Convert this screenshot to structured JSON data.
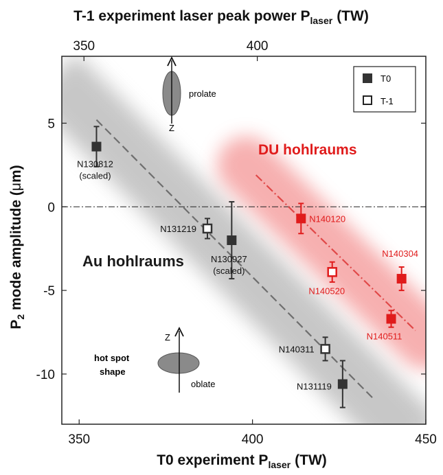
{
  "chart_data": {
    "type": "scatter",
    "xlabel_main": "T0 experiment P",
    "xlabel_sub": "laser",
    "xlabel_unit": "(TW)",
    "xlabel_top_main": "T-1 experiment laser peak power P",
    "xlabel_top_sub": "laser",
    "xlabel_top_unit": "(TW)",
    "ylabel_prefix": "P",
    "ylabel_sub": "2",
    "ylabel_rest": " mode amplitude (",
    "ylabel_mu": "μ",
    "ylabel_unit": "m)",
    "xlim": [
      345,
      450
    ],
    "ylim": [
      -13,
      9
    ],
    "x_ticks": [
      350,
      400,
      450
    ],
    "x_tick_labels": [
      "350",
      "400",
      "450"
    ],
    "x_top_ticks": [
      350,
      400
    ],
    "x_top_tick_labels": [
      "350",
      "400"
    ],
    "y_ticks": [
      5,
      0,
      -5,
      -10
    ],
    "y_tick_labels": [
      "5",
      "0",
      "-5",
      "-10"
    ],
    "legend": {
      "position": "top-right",
      "entries": [
        {
          "label": "T0",
          "marker": "filled-square"
        },
        {
          "label": "T-1",
          "marker": "open-square"
        }
      ]
    },
    "colors": {
      "au": "#4a4a4a",
      "du": "#e01b1b",
      "band_au": "#9a9a9a",
      "band_du": "#f07070"
    },
    "series": [
      {
        "group": "Au",
        "points": [
          {
            "x": 355,
            "y": 3.6,
            "err": 1.2,
            "marker": "filled",
            "label": "N130812",
            "label2": "(scaled)"
          },
          {
            "x": 387,
            "y": -1.3,
            "err": 0.6,
            "marker": "open",
            "label": "N131219"
          },
          {
            "x": 394,
            "y": -2.0,
            "err": 2.3,
            "marker": "filled",
            "label": "N130927",
            "label2": "(scaled)"
          },
          {
            "x": 421,
            "y": -8.5,
            "err": 0.7,
            "marker": "open",
            "label": "N140311"
          },
          {
            "x": 426,
            "y": -10.6,
            "err": 1.4,
            "marker": "filled",
            "label": "N131119"
          }
        ]
      },
      {
        "group": "DU",
        "points": [
          {
            "x": 414,
            "y": -0.7,
            "err": 0.9,
            "marker": "filled",
            "label": "N140120"
          },
          {
            "x": 423,
            "y": -3.9,
            "err": 0.6,
            "marker": "open",
            "label": "N140520"
          },
          {
            "x": 443,
            "y": -4.3,
            "err": 0.7,
            "marker": "filled",
            "label": "N140304"
          },
          {
            "x": 440,
            "y": -6.7,
            "err": 0.5,
            "marker": "filled",
            "label": "N140511"
          }
        ]
      }
    ],
    "fit_lines": [
      {
        "group": "Au",
        "x": [
          355,
          435
        ],
        "y": [
          5.2,
          -11.5
        ],
        "style": "dashed"
      },
      {
        "group": "DU",
        "x": [
          401,
          447
        ],
        "y": [
          1.9,
          -7.4
        ],
        "style": "dash-dot"
      }
    ],
    "annotations": {
      "au_label": "Au hohlraums",
      "du_label": "DU hohlraums",
      "prolate": "prolate",
      "oblate": "oblate",
      "hotspot_line1": "hot spot",
      "hotspot_line2": "shape",
      "z_axis": "Z"
    }
  }
}
